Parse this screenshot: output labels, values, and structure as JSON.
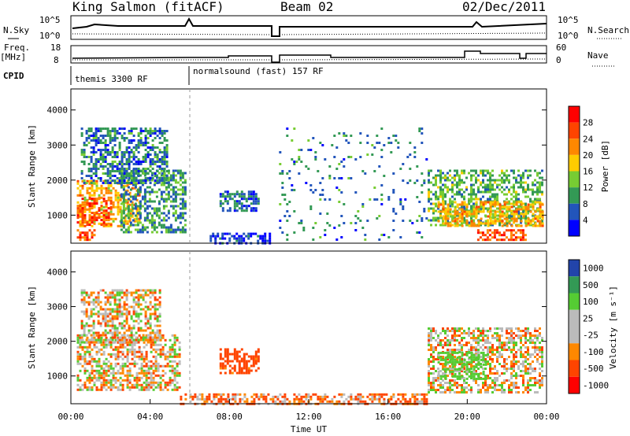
{
  "header": {
    "station": "King Salmon (fitACF)",
    "beam": "Beam 02",
    "date": "02/Dec/2011"
  },
  "summary": {
    "nsky_label": "N.Sky",
    "nsky_ticks": [
      "10^5",
      "10^0"
    ],
    "nsearch_label": "N.Search",
    "nsearch_ticks": [
      "10^5",
      "10^0"
    ],
    "freq_label": "Freq.",
    "freq_unit": "[MHz]",
    "freq_ticks": [
      "18",
      "8"
    ],
    "nave_label": "Nave",
    "nave_ticks": [
      "60",
      "0"
    ],
    "cpid_label": "CPID",
    "cpid_segments": [
      "themis 3300 RF",
      "normalsound (fast) 157 RF"
    ]
  },
  "chart_data": [
    {
      "type": "heatmap",
      "title": "",
      "xlabel": "",
      "ylabel": "Slant Range [km]",
      "xlim": [
        "00:00",
        "24:00"
      ],
      "ylim": [
        200,
        4600
      ],
      "y_ticks": [
        1000,
        2000,
        3000,
        4000
      ],
      "colorbar": {
        "label": "Power [dB]",
        "ticks": [
          "28",
          "24",
          "20",
          "16",
          "12",
          "8",
          "4"
        ],
        "colors": [
          "#ff0000",
          "#ff4400",
          "#ff8800",
          "#ffcc00",
          "#77cc33",
          "#339955",
          "#2255bb",
          "#0000ff"
        ]
      },
      "regions": [
        {
          "t0": 0.3,
          "t1": 3.5,
          "r0": 700,
          "r1": 2000,
          "value": 20
        },
        {
          "t0": 0.3,
          "t1": 2.0,
          "r0": 700,
          "r1": 1500,
          "value": 26
        },
        {
          "t0": 2.5,
          "t1": 5.8,
          "r0": 500,
          "r1": 2300,
          "value": 10
        },
        {
          "t0": 0.3,
          "t1": 1.2,
          "r0": 300,
          "r1": 600,
          "value": 26
        },
        {
          "t0": 0.5,
          "t1": 4.8,
          "r0": 1900,
          "r1": 3500,
          "value": 8
        },
        {
          "t0": 7.0,
          "t1": 10.0,
          "r0": 200,
          "r1": 500,
          "value": 4
        },
        {
          "t0": 7.5,
          "t1": 9.5,
          "r0": 1100,
          "r1": 1700,
          "value": 6
        },
        {
          "t0": 18.0,
          "t1": 23.8,
          "r0": 700,
          "r1": 2300,
          "value": 12
        },
        {
          "t0": 18.5,
          "t1": 23.8,
          "r0": 700,
          "r1": 1400,
          "value": 20
        },
        {
          "t0": 20.5,
          "t1": 23.0,
          "r0": 300,
          "r1": 600,
          "value": 26
        },
        {
          "t0": 10.5,
          "t1": 18.0,
          "r0": 300,
          "r1": 3500,
          "value": 8
        }
      ]
    },
    {
      "type": "heatmap",
      "title": "",
      "xlabel": "Time UT",
      "ylabel": "Slant Range [km]",
      "xlim": [
        "00:00",
        "24:00"
      ],
      "x_ticks": [
        "00:00",
        "04:00",
        "08:00",
        "12:00",
        "16:00",
        "20:00",
        "00:00"
      ],
      "ylim": [
        200,
        4600
      ],
      "y_ticks": [
        1000,
        2000,
        3000,
        4000
      ],
      "colorbar": {
        "label": "Velocity [m s⁻¹]",
        "ticks": [
          "1000",
          "500",
          "100",
          "25",
          "-25",
          "-100",
          "-500",
          "-1000"
        ],
        "colors": [
          "#2244aa",
          "#339955",
          "#55cc33",
          "#bbbbbb",
          "#bbbbbb",
          "#ff8800",
          "#ff4400",
          "#ff0000"
        ]
      },
      "regions": [
        {
          "t0": 0.3,
          "t1": 5.5,
          "r0": 600,
          "r1": 2200,
          "value": 0
        },
        {
          "t0": 0.5,
          "t1": 4.5,
          "r0": 2000,
          "r1": 3500,
          "value": 0
        },
        {
          "t0": 7.5,
          "t1": 9.5,
          "r0": 1100,
          "r1": 1800,
          "value": -150
        },
        {
          "t0": 18.0,
          "t1": 23.8,
          "r0": 500,
          "r1": 2400,
          "value": 0
        },
        {
          "t0": 18.5,
          "t1": 21.0,
          "r0": 900,
          "r1": 1700,
          "value": 150
        },
        {
          "t0": 5.5,
          "t1": 18.0,
          "r0": 200,
          "r1": 500,
          "value": -60
        }
      ]
    }
  ]
}
